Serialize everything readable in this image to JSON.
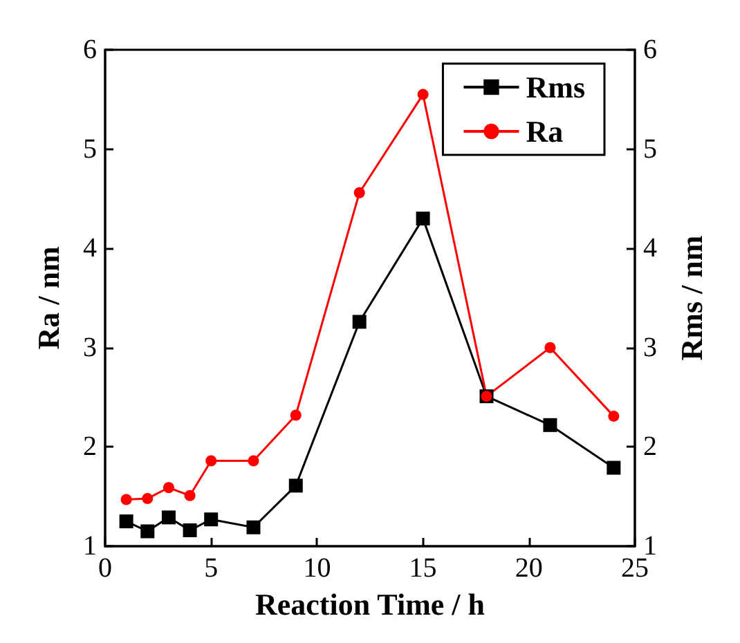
{
  "chart_data": {
    "type": "line",
    "xlabel": "Reaction Time / h",
    "ylabel": "Ra / nm",
    "y2label": "Rms / nm",
    "x": [
      1,
      2,
      3,
      4,
      5,
      7,
      9,
      12,
      15,
      18,
      21,
      24
    ],
    "series": [
      {
        "name": "Rms",
        "color": "#000000",
        "marker": "square",
        "values": [
          1.25,
          1.15,
          1.29,
          1.16,
          1.27,
          1.19,
          1.61,
          3.26,
          4.3,
          2.51,
          2.22,
          1.79
        ]
      },
      {
        "name": "Ra",
        "color": "#ff0000",
        "marker": "circle",
        "values": [
          1.47,
          1.48,
          1.59,
          1.51,
          1.86,
          1.86,
          2.32,
          4.56,
          5.55,
          2.51,
          3.0,
          2.31
        ]
      }
    ],
    "xlim": [
      0,
      25
    ],
    "xticks": [
      0,
      5,
      10,
      15,
      20,
      25
    ],
    "ylim": [
      1,
      6
    ],
    "yticks": [
      1,
      2,
      3,
      4,
      5,
      6
    ],
    "y2lim": [
      1,
      6
    ],
    "y2ticks": [
      1,
      2,
      3,
      4,
      5,
      6
    ],
    "legend": "top right",
    "grid": false,
    "line_style": "solid"
  }
}
